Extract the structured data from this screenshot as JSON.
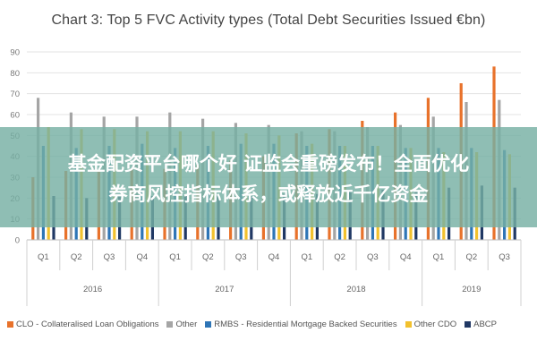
{
  "banner": {
    "line1": "基金配资平台哪个好 证监会重磅发布！全面优化",
    "line2": "券商风控指标体系，或释放近千亿资金"
  },
  "chart_data": {
    "type": "bar",
    "title": "Chart 3: Top 5 FVC Activity types (Total Debt Securities Issued €bn)",
    "xlabel": "",
    "ylabel": "",
    "ylim": [
      0,
      90
    ],
    "yticks": [
      0,
      10,
      20,
      30,
      40,
      50,
      60,
      70,
      80,
      90
    ],
    "grid": true,
    "legend_position": "bottom",
    "categories": [
      "Q1",
      "Q2",
      "Q3",
      "Q4",
      "Q1",
      "Q2",
      "Q3",
      "Q4",
      "Q1",
      "Q2",
      "Q3",
      "Q4",
      "Q1",
      "Q2",
      "Q3"
    ],
    "years": [
      {
        "label": "2016",
        "count": 4
      },
      {
        "label": "2017",
        "count": 4
      },
      {
        "label": "2018",
        "count": 4
      },
      {
        "label": "2019",
        "count": 3
      }
    ],
    "series": [
      {
        "name": "CLO - Collateralised Loan Obligations",
        "color": "#E8722B",
        "values": [
          30,
          33,
          33,
          34,
          34,
          36,
          38,
          40,
          51,
          53,
          57,
          61,
          68,
          75,
          83
        ]
      },
      {
        "name": "Other",
        "color": "#A5A5A5",
        "values": [
          68,
          61,
          59,
          59,
          61,
          58,
          56,
          55,
          52,
          52,
          54,
          55,
          59,
          66,
          67
        ]
      },
      {
        "name": "RMBS - Residential Mortgage Backed Securities",
        "color": "#2E75B6",
        "values": [
          45,
          44,
          45,
          46,
          44,
          45,
          46,
          46,
          45,
          45,
          45,
          44,
          44,
          44,
          43
        ]
      },
      {
        "name": "Other CDO",
        "color": "#F2C12E",
        "values": [
          54,
          53,
          53,
          52,
          52,
          52,
          51,
          50,
          46,
          45,
          45,
          44,
          42,
          42,
          41
        ]
      },
      {
        "name": "ABCP",
        "color": "#203864",
        "values": [
          21,
          20,
          21,
          21,
          21,
          21,
          21,
          22,
          22,
          23,
          24,
          24,
          25,
          26,
          25
        ]
      }
    ]
  }
}
